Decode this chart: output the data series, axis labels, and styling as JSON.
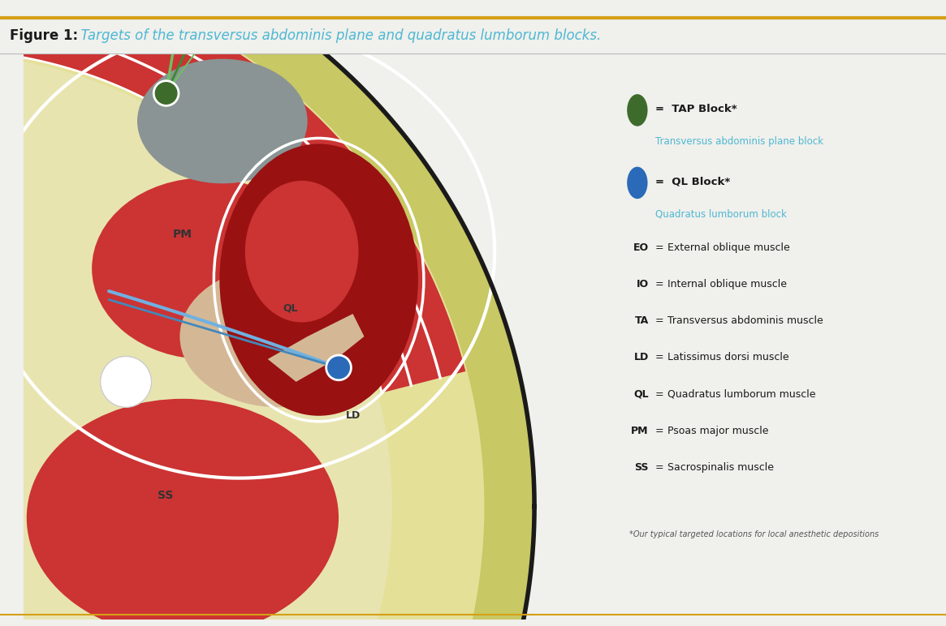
{
  "title_bold": "Figure 1:",
  "title_italic": "  Targets of the transversus abdominis plane and quadratus lumborum blocks.",
  "title_color_bold": "#1a1a1a",
  "title_color_italic": "#4db8d4",
  "bg_color": "#f0f0ec",
  "border_color": "#d4a017",
  "colors": {
    "body_outline": "#1a1a1a",
    "yellow_fat": "#ddd87a",
    "inner_fat": "#e8e4b0",
    "muscle_red": "#cc3333",
    "muscle_dark_red": "#991111",
    "muscle_medium_red": "#bb3333",
    "muscle_tan": "#d4b896",
    "muscle_peach": "#e8c8a0",
    "gray_kidney": "#8a9494",
    "tap_green": "#3d6b2c",
    "tap_line_green": "#6dc060",
    "tap_line_dark": "#3a8a30",
    "ql_blue": "#2a6ab8",
    "ql_line_blue": "#70b0e0",
    "white_fascia": "#f5f2ee",
    "skin_dark": "#1a1a1a"
  },
  "legend": {
    "tap_label1": "TAP Block*",
    "tap_label2": "Transversus abdominis plane block",
    "ql_label1": "QL Block*",
    "ql_label2": "Quadratus lumborum block",
    "entries": [
      [
        "EO",
        "External oblique muscle"
      ],
      [
        "IO",
        "Internal oblique muscle"
      ],
      [
        "TA",
        "Transversus abdominis muscle"
      ],
      [
        "LD",
        "Latissimus dorsi muscle"
      ],
      [
        "QL",
        "Quadratus lumborum muscle"
      ],
      [
        "PM",
        "Psoas major muscle"
      ],
      [
        "SS",
        "Sacrospinalis muscle"
      ]
    ],
    "footnote": "*Our typical targeted locations for local anesthetic depositions"
  }
}
